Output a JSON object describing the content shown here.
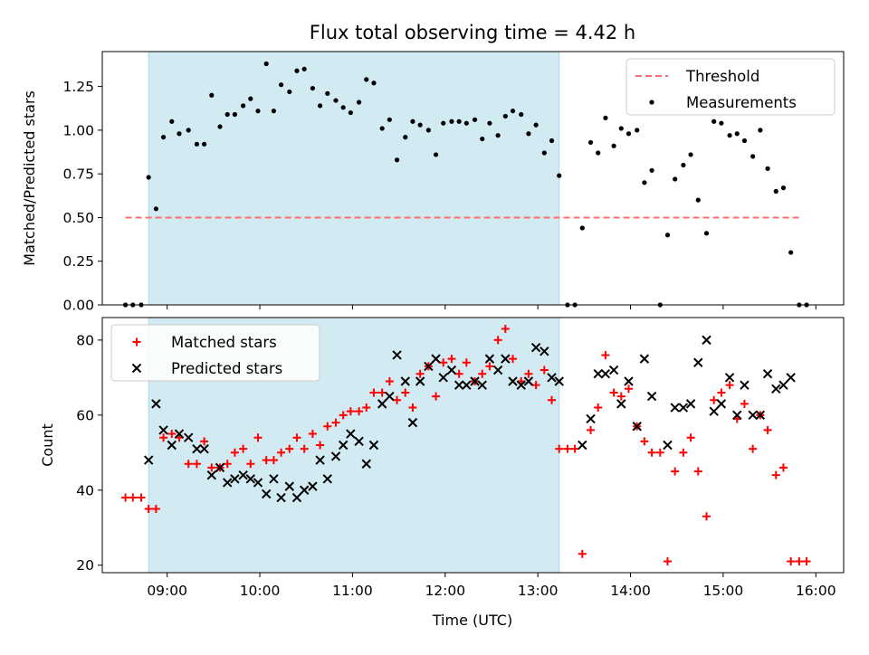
{
  "chart_data": {
    "title": "Flux total observing time = 4.42 h",
    "xlabel": "Time (UTC)",
    "xlim": [
      8.3,
      16.3
    ],
    "x_ticks": [
      9,
      10,
      11,
      12,
      13,
      14,
      15,
      16
    ],
    "x_tick_labels": [
      "09:00",
      "10:00",
      "11:00",
      "12:00",
      "13:00",
      "14:00",
      "15:00",
      "16:00"
    ],
    "shaded_region": [
      8.8,
      13.23
    ],
    "shaded_color": "#add8e6",
    "panels": [
      {
        "type": "scatter",
        "ylabel": "Matched/Predicted stars",
        "ylim": [
          0,
          1.45
        ],
        "y_ticks": [
          0.0,
          0.25,
          0.5,
          0.75,
          1.0,
          1.25
        ],
        "y_tick_labels": [
          "0.00",
          "0.25",
          "0.50",
          "0.75",
          "1.00",
          "1.25"
        ],
        "legend": {
          "position": "upper right",
          "entries": [
            "Threshold",
            "Measurements"
          ]
        },
        "threshold": {
          "name": "Threshold",
          "y": 0.5,
          "x": [
            8.55,
            15.85
          ],
          "color": "#ff6e6e",
          "style": "dashed"
        },
        "series": [
          {
            "name": "Measurements",
            "marker": "dot",
            "color": "#000000",
            "x": [
              8.55,
              8.63,
              8.72,
              8.8,
              8.88,
              8.96,
              9.05,
              9.13,
              9.23,
              9.32,
              9.4,
              9.48,
              9.57,
              9.65,
              9.73,
              9.82,
              9.9,
              9.98,
              10.07,
              10.15,
              10.23,
              10.32,
              10.4,
              10.48,
              10.57,
              10.65,
              10.73,
              10.82,
              10.9,
              10.98,
              11.07,
              11.15,
              11.23,
              11.32,
              11.4,
              11.48,
              11.57,
              11.65,
              11.73,
              11.82,
              11.9,
              11.98,
              12.07,
              12.15,
              12.23,
              12.32,
              12.4,
              12.48,
              12.57,
              12.65,
              12.73,
              12.82,
              12.9,
              12.98,
              13.07,
              13.15,
              13.23,
              13.32,
              13.4,
              13.48,
              13.57,
              13.65,
              13.73,
              13.82,
              13.9,
              13.98,
              14.07,
              14.15,
              14.23,
              14.32,
              14.4,
              14.48,
              14.57,
              14.65,
              14.73,
              14.82,
              14.9,
              14.98,
              15.07,
              15.15,
              15.23,
              15.32,
              15.4,
              15.48,
              15.57,
              15.65,
              15.73,
              15.82,
              15.9
            ],
            "y": [
              0.0,
              0.0,
              0.0,
              0.73,
              0.55,
              0.96,
              1.05,
              0.98,
              1.0,
              0.92,
              0.92,
              1.2,
              1.02,
              1.09,
              1.09,
              1.14,
              1.18,
              1.11,
              1.38,
              1.11,
              1.26,
              1.22,
              1.34,
              1.35,
              1.24,
              1.14,
              1.21,
              1.17,
              1.13,
              1.1,
              1.16,
              1.29,
              1.27,
              1.01,
              1.06,
              0.83,
              0.96,
              1.05,
              1.03,
              1.0,
              0.86,
              1.04,
              1.05,
              1.05,
              1.04,
              1.06,
              0.95,
              1.04,
              0.97,
              1.08,
              1.11,
              1.09,
              0.98,
              1.03,
              0.87,
              0.94,
              0.74,
              0.0,
              0.0,
              0.44,
              0.93,
              0.87,
              1.07,
              0.91,
              1.01,
              0.98,
              1.0,
              0.7,
              0.77,
              0.0,
              0.4,
              0.72,
              0.8,
              0.86,
              0.6,
              0.41,
              1.05,
              1.04,
              0.97,
              0.98,
              0.94,
              0.85,
              1.0,
              0.78,
              0.65,
              0.67,
              0.3,
              0.0,
              0.0
            ]
          }
        ]
      },
      {
        "type": "scatter",
        "ylabel": "Count",
        "ylim": [
          18,
          86
        ],
        "y_ticks": [
          20,
          40,
          60,
          80
        ],
        "y_tick_labels": [
          "20",
          "40",
          "60",
          "80"
        ],
        "legend": {
          "position": "upper left",
          "entries": [
            "Matched stars",
            "Predicted stars"
          ]
        },
        "series": [
          {
            "name": "Matched stars",
            "marker": "plus",
            "color": "#ff0000",
            "x": [
              8.55,
              8.63,
              8.72,
              8.8,
              8.88,
              8.96,
              9.05,
              9.13,
              9.23,
              9.32,
              9.4,
              9.48,
              9.57,
              9.65,
              9.73,
              9.82,
              9.9,
              9.98,
              10.07,
              10.15,
              10.23,
              10.32,
              10.4,
              10.48,
              10.57,
              10.65,
              10.73,
              10.82,
              10.9,
              10.98,
              11.07,
              11.15,
              11.23,
              11.32,
              11.4,
              11.48,
              11.57,
              11.65,
              11.73,
              11.82,
              11.9,
              11.98,
              12.07,
              12.15,
              12.23,
              12.32,
              12.4,
              12.48,
              12.57,
              12.65,
              12.73,
              12.82,
              12.9,
              12.98,
              13.07,
              13.15,
              13.23,
              13.32,
              13.4,
              13.48,
              13.57,
              13.65,
              13.73,
              13.82,
              13.9,
              13.98,
              14.07,
              14.15,
              14.23,
              14.32,
              14.4,
              14.48,
              14.57,
              14.65,
              14.73,
              14.82,
              14.9,
              14.98,
              15.07,
              15.15,
              15.23,
              15.32,
              15.4,
              15.48,
              15.57,
              15.65,
              15.73,
              15.82,
              15.9
            ],
            "y": [
              38,
              38,
              38,
              35,
              35,
              54,
              55,
              54,
              47,
              47,
              53,
              46,
              46,
              47,
              50,
              51,
              47,
              54,
              48,
              48,
              50,
              51,
              54,
              51,
              55,
              52,
              57,
              58,
              60,
              61,
              61,
              62,
              66,
              66,
              69,
              64,
              66,
              62,
              71,
              73,
              65,
              74,
              75,
              71,
              74,
              69,
              71,
              73,
              80,
              83,
              75,
              69,
              71,
              68,
              72,
              64,
              51,
              51,
              51,
              23,
              56,
              62,
              76,
              66,
              65,
              67,
              57,
              53,
              50,
              50,
              21,
              45,
              50,
              54,
              45,
              33,
              64,
              66,
              68,
              59,
              63,
              51,
              60,
              56,
              44,
              46,
              21,
              21,
              21
            ]
          },
          {
            "name": "Predicted stars",
            "marker": "x",
            "color": "#000000",
            "x": [
              8.8,
              8.88,
              8.96,
              9.05,
              9.13,
              9.23,
              9.32,
              9.4,
              9.48,
              9.57,
              9.65,
              9.73,
              9.82,
              9.9,
              9.98,
              10.07,
              10.15,
              10.23,
              10.32,
              10.4,
              10.48,
              10.57,
              10.65,
              10.73,
              10.82,
              10.9,
              10.98,
              11.07,
              11.15,
              11.23,
              11.32,
              11.4,
              11.48,
              11.57,
              11.65,
              11.73,
              11.82,
              11.9,
              11.98,
              12.07,
              12.15,
              12.23,
              12.32,
              12.4,
              12.48,
              12.57,
              12.65,
              12.73,
              12.82,
              12.9,
              12.98,
              13.07,
              13.15,
              13.23,
              13.48,
              13.57,
              13.65,
              13.73,
              13.82,
              13.9,
              13.98,
              14.07,
              14.15,
              14.23,
              14.4,
              14.48,
              14.57,
              14.65,
              14.73,
              14.82,
              14.9,
              14.98,
              15.07,
              15.15,
              15.23,
              15.32,
              15.4,
              15.48,
              15.57,
              15.65,
              15.73
            ],
            "y": [
              48,
              63,
              56,
              52,
              55,
              54,
              51,
              51,
              44,
              46,
              42,
              43,
              44,
              43,
              42,
              39,
              43,
              38,
              41,
              38,
              40,
              41,
              48,
              43,
              49,
              52,
              55,
              53,
              47,
              52,
              63,
              65,
              76,
              69,
              58,
              69,
              73,
              75,
              70,
              72,
              68,
              68,
              69,
              68,
              75,
              72,
              75,
              69,
              68,
              69,
              78,
              77,
              70,
              69,
              52,
              59,
              71,
              71,
              72,
              63,
              69,
              57,
              75,
              65,
              52,
              62,
              62,
              63,
              74,
              80,
              61,
              63,
              70,
              60,
              68,
              60,
              60,
              71,
              67,
              68,
              70
            ]
          }
        ]
      }
    ]
  }
}
